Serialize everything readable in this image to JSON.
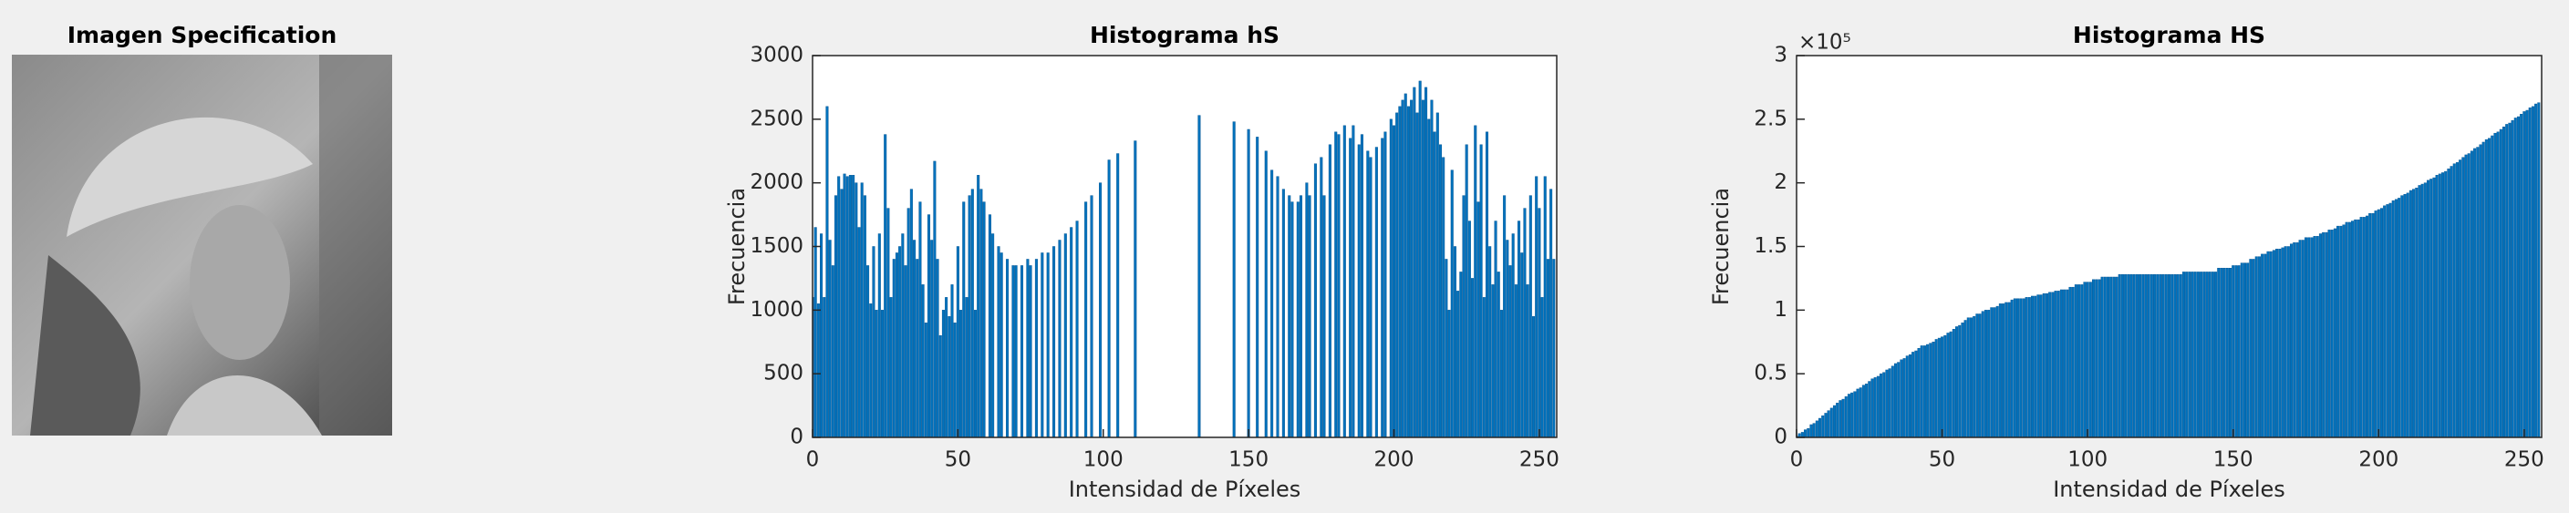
{
  "chart_data": [
    {
      "type": "image",
      "title": "Imagen Specification"
    },
    {
      "type": "bar",
      "title": "Histograma hS",
      "xlabel": "Intensidad de Píxeles",
      "ylabel": "Frecuencia",
      "color": "#0072bd",
      "xlim": [
        0,
        256
      ],
      "xticks": [
        0,
        50,
        100,
        150,
        200,
        250
      ],
      "ylim": [
        0,
        3000
      ],
      "yticks": [
        0,
        500,
        1000,
        1500,
        2000,
        2500,
        3000
      ],
      "x": [
        0,
        1,
        2,
        3,
        4,
        5,
        6,
        7,
        8,
        9,
        10,
        11,
        12,
        13,
        14,
        15,
        16,
        17,
        18,
        19,
        20,
        21,
        22,
        23,
        24,
        25,
        26,
        27,
        28,
        29,
        30,
        31,
        32,
        33,
        34,
        35,
        36,
        37,
        38,
        39,
        40,
        41,
        42,
        43,
        44,
        45,
        46,
        47,
        48,
        49,
        50,
        51,
        52,
        53,
        54,
        55,
        56,
        57,
        58,
        59,
        60,
        61,
        62,
        63,
        64,
        65,
        66,
        67,
        68,
        69,
        70,
        71,
        72,
        73,
        74,
        75,
        76,
        77,
        78,
        79,
        80,
        81,
        82,
        83,
        84,
        85,
        86,
        87,
        88,
        89,
        90,
        91,
        92,
        93,
        94,
        95,
        96,
        97,
        98,
        99,
        100,
        101,
        102,
        103,
        104,
        105,
        106,
        107,
        108,
        109,
        110,
        111,
        112,
        113,
        114,
        115,
        116,
        117,
        118,
        119,
        120,
        121,
        122,
        123,
        124,
        125,
        126,
        127,
        128,
        129,
        130,
        131,
        132,
        133,
        134,
        135,
        136,
        137,
        138,
        139,
        140,
        141,
        142,
        143,
        144,
        145,
        146,
        147,
        148,
        149,
        150,
        151,
        152,
        153,
        154,
        155,
        156,
        157,
        158,
        159,
        160,
        161,
        162,
        163,
        164,
        165,
        166,
        167,
        168,
        169,
        170,
        171,
        172,
        173,
        174,
        175,
        176,
        177,
        178,
        179,
        180,
        181,
        182,
        183,
        184,
        185,
        186,
        187,
        188,
        189,
        190,
        191,
        192,
        193,
        194,
        195,
        196,
        197,
        198,
        199,
        200,
        201,
        202,
        203,
        204,
        205,
        206,
        207,
        208,
        209,
        210,
        211,
        212,
        213,
        214,
        215,
        216,
        217,
        218,
        219,
        220,
        221,
        222,
        223,
        224,
        225,
        226,
        227,
        228,
        229,
        230,
        231,
        232,
        233,
        234,
        235,
        236,
        237,
        238,
        239,
        240,
        241,
        242,
        243,
        244,
        245,
        246,
        247,
        248,
        249,
        250,
        251,
        252,
        253,
        254,
        255
      ],
      "values": [
        1100,
        1650,
        1050,
        1600,
        1100,
        2600,
        1550,
        1350,
        1900,
        2050,
        1950,
        2070,
        2050,
        2060,
        2060,
        2000,
        1650,
        2000,
        1900,
        1350,
        1050,
        1500,
        1000,
        1600,
        1000,
        2380,
        1800,
        1100,
        1400,
        1450,
        1500,
        1600,
        1350,
        1800,
        1950,
        1550,
        1400,
        1850,
        1200,
        900,
        1750,
        1550,
        2170,
        1400,
        800,
        1000,
        1100,
        950,
        1200,
        900,
        1500,
        1000,
        1850,
        1100,
        1900,
        1950,
        1000,
        2060,
        1950,
        1850,
        0,
        1750,
        1600,
        0,
        1500,
        1450,
        0,
        1400,
        0,
        1350,
        1350,
        0,
        1350,
        0,
        1400,
        1350,
        0,
        1400,
        0,
        1450,
        0,
        1450,
        0,
        1500,
        0,
        1550,
        0,
        1600,
        0,
        1650,
        0,
        1700,
        0,
        0,
        1850,
        0,
        1900,
        0,
        0,
        2000,
        0,
        0,
        2180,
        0,
        0,
        2230,
        0,
        0,
        0,
        0,
        0,
        2330,
        0,
        0,
        0,
        0,
        0,
        0,
        0,
        0,
        0,
        0,
        0,
        0,
        0,
        0,
        0,
        0,
        0,
        0,
        0,
        0,
        0,
        2530,
        0,
        0,
        0,
        0,
        0,
        0,
        0,
        0,
        0,
        0,
        0,
        2480,
        0,
        0,
        0,
        0,
        2420,
        0,
        0,
        2360,
        0,
        0,
        2250,
        0,
        2100,
        0,
        2050,
        0,
        1950,
        0,
        1900,
        1850,
        0,
        1850,
        1900,
        0,
        2000,
        1900,
        0,
        2150,
        0,
        2200,
        1900,
        0,
        2300,
        0,
        2400,
        2380,
        0,
        2450,
        0,
        2350,
        2450,
        0,
        2300,
        2380,
        0,
        2250,
        2200,
        0,
        2280,
        0,
        2350,
        2400,
        0,
        2500,
        2450,
        2550,
        2600,
        2650,
        2700,
        2600,
        2650,
        2750,
        2550,
        2800,
        2650,
        2750,
        2500,
        2650,
        2400,
        2550,
        2300,
        2200,
        1400,
        1000,
        2100,
        1500,
        1150,
        1300,
        1900,
        2300,
        1700,
        1250,
        2450,
        1850,
        2300,
        1100,
        2400,
        1500,
        1200,
        1700,
        1300,
        1000,
        1900,
        1550,
        1350,
        1600,
        1200,
        1700,
        1450,
        1800,
        1200,
        1900,
        950,
        2050,
        1800,
        1100,
        2050,
        1400,
        1950,
        1400
      ]
    },
    {
      "type": "bar",
      "title": "Histograma HS",
      "xlabel": "Intensidad de Píxeles",
      "ylabel": "Frecuencia",
      "color": "#0072bd",
      "y_exponent": "×10⁵",
      "xlim": [
        0,
        256
      ],
      "xticks": [
        0,
        50,
        100,
        150,
        200,
        250
      ],
      "ylim": [
        0,
        300000
      ],
      "yticks": [
        0,
        {
          "value": 50000,
          "label": "0.5"
        },
        {
          "value": 100000,
          "label": "1"
        },
        {
          "value": 150000,
          "label": "1.5"
        },
        {
          "value": 200000,
          "label": "2"
        },
        {
          "value": 250000,
          "label": "2.5"
        },
        {
          "value": 300000,
          "label": "3"
        }
      ],
      "x": [
        0,
        1,
        2,
        3,
        4,
        5,
        6,
        7,
        8,
        9,
        10,
        11,
        12,
        13,
        14,
        15,
        16,
        17,
        18,
        19,
        20,
        21,
        22,
        23,
        24,
        25,
        26,
        27,
        28,
        29,
        30,
        31,
        32,
        33,
        34,
        35,
        36,
        37,
        38,
        39,
        40,
        41,
        42,
        43,
        44,
        45,
        46,
        47,
        48,
        49,
        50,
        51,
        52,
        53,
        54,
        55,
        56,
        57,
        58,
        59,
        60,
        61,
        62,
        63,
        64,
        65,
        66,
        67,
        68,
        69,
        70,
        71,
        72,
        73,
        74,
        75,
        76,
        77,
        78,
        79,
        80,
        81,
        82,
        83,
        84,
        85,
        86,
        87,
        88,
        89,
        90,
        91,
        92,
        93,
        94,
        95,
        96,
        97,
        98,
        99,
        100,
        101,
        102,
        103,
        104,
        105,
        106,
        107,
        108,
        109,
        110,
        111,
        112,
        113,
        114,
        115,
        116,
        117,
        118,
        119,
        120,
        121,
        122,
        123,
        124,
        125,
        126,
        127,
        128,
        129,
        130,
        131,
        132,
        133,
        134,
        135,
        136,
        137,
        138,
        139,
        140,
        141,
        142,
        143,
        144,
        145,
        146,
        147,
        148,
        149,
        150,
        151,
        152,
        153,
        154,
        155,
        156,
        157,
        158,
        159,
        160,
        161,
        162,
        163,
        164,
        165,
        166,
        167,
        168,
        169,
        170,
        171,
        172,
        173,
        174,
        175,
        176,
        177,
        178,
        179,
        180,
        181,
        182,
        183,
        184,
        185,
        186,
        187,
        188,
        189,
        190,
        191,
        192,
        193,
        194,
        195,
        196,
        197,
        198,
        199,
        200,
        201,
        202,
        203,
        204,
        205,
        206,
        207,
        208,
        209,
        210,
        211,
        212,
        213,
        214,
        215,
        216,
        217,
        218,
        219,
        220,
        221,
        222,
        223,
        224,
        225,
        226,
        227,
        228,
        229,
        230,
        231,
        232,
        233,
        234,
        235,
        236,
        237,
        238,
        239,
        240,
        241,
        242,
        243,
        244,
        245,
        246,
        247,
        248,
        249,
        250,
        251,
        252,
        253,
        254,
        255
      ],
      "values": [
        1000,
        3000,
        4000,
        6000,
        7000,
        10000,
        11000,
        13000,
        15000,
        17000,
        19000,
        21000,
        23000,
        25000,
        27000,
        29000,
        30000,
        32000,
        34000,
        35000,
        36000,
        38000,
        39000,
        41000,
        42000,
        44000,
        46000,
        47000,
        48000,
        50000,
        51000,
        53000,
        54000,
        56000,
        58000,
        59000,
        61000,
        62000,
        64000,
        65000,
        67000,
        68000,
        70000,
        72000,
        72000,
        73000,
        74000,
        75000,
        77000,
        78000,
        79000,
        80000,
        82000,
        83000,
        85000,
        87000,
        88000,
        90000,
        92000,
        94000,
        94000,
        95000,
        97000,
        97000,
        99000,
        100000,
        100000,
        102000,
        102000,
        103000,
        105000,
        105000,
        106000,
        106000,
        108000,
        109000,
        109000,
        109000,
        109000,
        110000,
        110000,
        111000,
        111000,
        112000,
        112000,
        113000,
        113000,
        114000,
        114000,
        115000,
        115000,
        116000,
        116000,
        116000,
        118000,
        118000,
        120000,
        120000,
        120000,
        122000,
        122000,
        122000,
        124000,
        124000,
        124000,
        126000,
        126000,
        126000,
        126000,
        126000,
        126000,
        128000,
        128000,
        128000,
        128000,
        128000,
        128000,
        128000,
        128000,
        128000,
        128000,
        128000,
        128000,
        128000,
        128000,
        128000,
        128000,
        128000,
        128000,
        128000,
        128000,
        128000,
        128000,
        130000,
        130000,
        130000,
        130000,
        130000,
        130000,
        130000,
        130000,
        130000,
        130000,
        130000,
        130000,
        133000,
        133000,
        133000,
        133000,
        133000,
        135000,
        135000,
        135000,
        137000,
        137000,
        137000,
        140000,
        140000,
        142000,
        142000,
        144000,
        144000,
        146000,
        146000,
        147000,
        148000,
        148000,
        149000,
        150000,
        150000,
        152000,
        153000,
        153000,
        155000,
        155000,
        157000,
        157000,
        157000,
        158000,
        158000,
        160000,
        161000,
        161000,
        163000,
        163000,
        164000,
        166000,
        166000,
        167000,
        169000,
        169000,
        170000,
        171000,
        171000,
        173000,
        173000,
        174000,
        176000,
        176000,
        178000,
        179000,
        180000,
        182000,
        183000,
        184000,
        186000,
        187000,
        188000,
        190000,
        191000,
        192000,
        194000,
        195000,
        196000,
        198000,
        199000,
        200000,
        202000,
        203000,
        204000,
        206000,
        207000,
        208000,
        209000,
        211000,
        213000,
        215000,
        216000,
        218000,
        220000,
        222000,
        223000,
        225000,
        227000,
        228000,
        230000,
        232000,
        234000,
        235000,
        237000,
        239000,
        240000,
        242000,
        244000,
        246000,
        247000,
        249000,
        251000,
        252000,
        254000,
        256000,
        257000,
        259000,
        260000,
        262000,
        263000
      ]
    }
  ]
}
